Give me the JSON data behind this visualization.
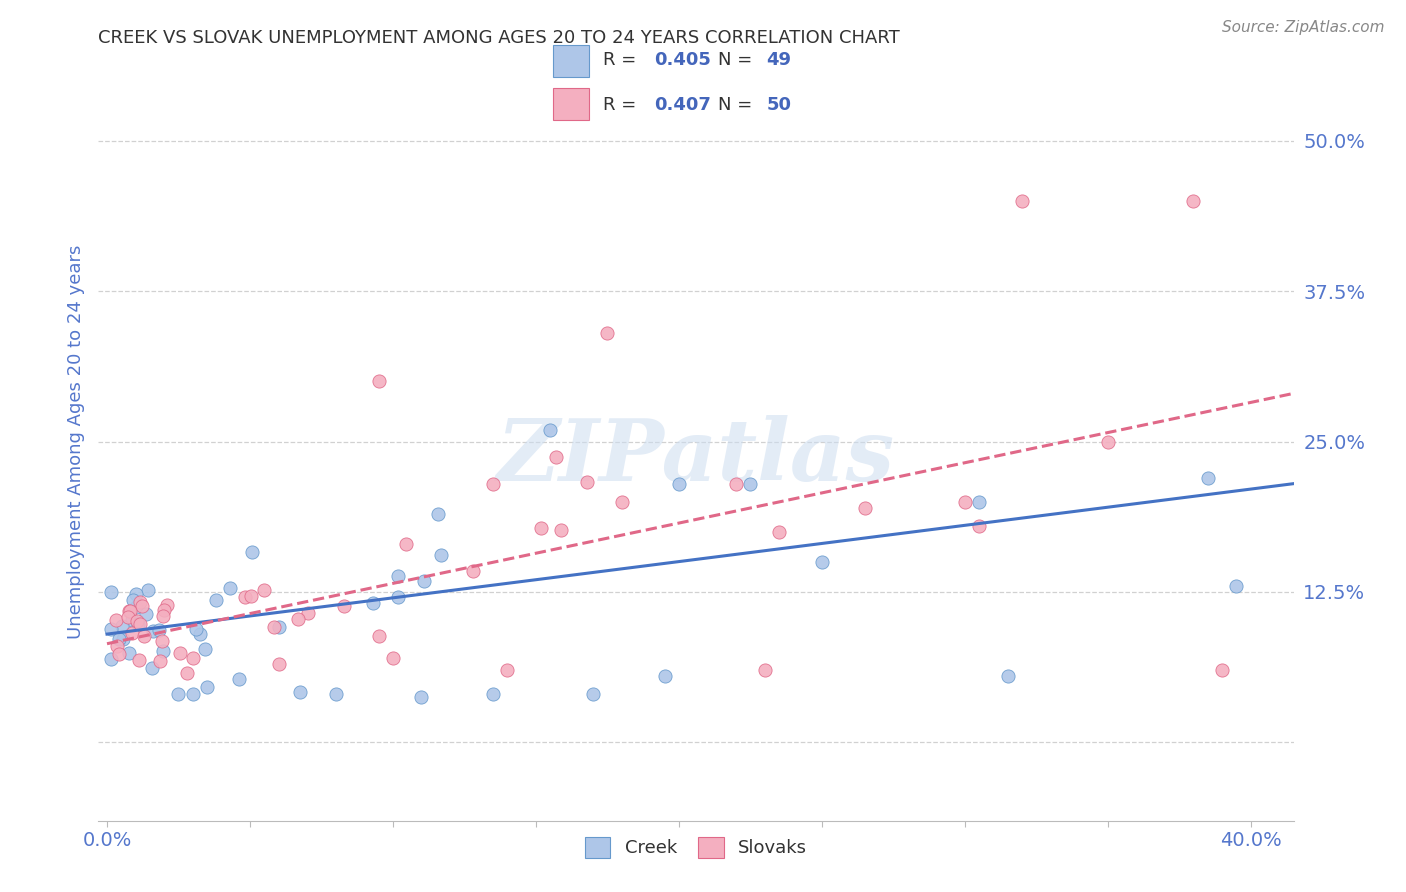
{
  "title": "CREEK VS SLOVAK UNEMPLOYMENT AMONG AGES 20 TO 24 YEARS CORRELATION CHART",
  "source": "Source: ZipAtlas.com",
  "ylabel": "Unemployment Among Ages 20 to 24 years",
  "creek_R": "0.405",
  "creek_N": "49",
  "slovak_R": "0.407",
  "slovak_N": "50",
  "creek_color": "#aec6e8",
  "creek_edge_color": "#6699cc",
  "slovak_color": "#f4afc0",
  "slovak_edge_color": "#e06888",
  "creek_line_color": "#4472c4",
  "slovak_line_color": "#e06888",
  "xlim": [
    -0.003,
    0.415
  ],
  "ylim": [
    -0.065,
    0.565
  ],
  "ytick_values": [
    0.0,
    0.125,
    0.25,
    0.375,
    0.5
  ],
  "ytick_labels": [
    "",
    "12.5%",
    "25.0%",
    "37.5%",
    "50.0%"
  ],
  "xtick_only_ends": [
    0.0,
    0.4
  ],
  "xtick_only_labels": [
    "0.0%",
    "40.0%"
  ],
  "creek_trend_x": [
    0.0,
    0.415
  ],
  "creek_trend_y": [
    0.09,
    0.215
  ],
  "slovak_trend_x": [
    0.0,
    0.415
  ],
  "slovak_trend_y": [
    0.082,
    0.29
  ],
  "watermark": "ZIPatlas",
  "background_color": "#ffffff",
  "grid_color": "#cccccc",
  "title_color": "#333333",
  "right_tick_color": "#5577cc",
  "ylabel_color": "#5577cc",
  "source_color": "#888888",
  "legend_text_color": "#333333",
  "legend_value_color": "#4466bb"
}
